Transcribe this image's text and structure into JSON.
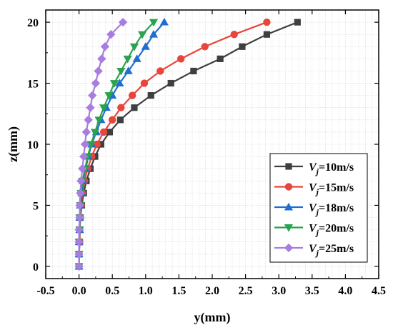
{
  "chart_data": {
    "type": "line",
    "xlabel": "y(mm)",
    "ylabel": "z(mm)",
    "xlim": [
      -0.5,
      4.5
    ],
    "ylim": [
      -1,
      21
    ],
    "x_ticks": [
      "-0.5",
      "0.0",
      "0.5",
      "1.0",
      "1.5",
      "2.0",
      "2.5",
      "3.0",
      "3.5",
      "4.0",
      "4.5"
    ],
    "y_ticks": [
      "0",
      "5",
      "10",
      "15",
      "20"
    ],
    "grid": true,
    "legend_position": "right",
    "z": [
      0,
      1,
      2,
      3,
      4,
      5,
      6,
      7,
      8,
      9,
      10,
      11,
      12,
      13,
      14,
      15,
      16,
      17,
      18,
      19,
      20
    ],
    "series": [
      {
        "name": "Vj=10m/s",
        "legend_base": "V",
        "legend_sub": "j",
        "legend_rest": "=10m/s",
        "color": "#3f3f3f",
        "marker": "square",
        "y": [
          0.0,
          0.0,
          0.01,
          0.01,
          0.02,
          0.04,
          0.07,
          0.11,
          0.17,
          0.24,
          0.33,
          0.46,
          0.62,
          0.83,
          1.08,
          1.38,
          1.72,
          2.12,
          2.45,
          2.82,
          3.28
        ]
      },
      {
        "name": "Vj=15m/s",
        "legend_base": "V",
        "legend_sub": "j",
        "legend_rest": "=15m/s",
        "color": "#e8453c",
        "marker": "circle",
        "y": [
          0.0,
          0.0,
          0.01,
          0.01,
          0.02,
          0.03,
          0.05,
          0.08,
          0.13,
          0.19,
          0.27,
          0.37,
          0.5,
          0.63,
          0.8,
          0.98,
          1.22,
          1.53,
          1.89,
          2.33,
          2.82
        ]
      },
      {
        "name": "Vj=18m/s",
        "legend_base": "V",
        "legend_sub": "j",
        "legend_rest": "=18m/s",
        "color": "#1f6fd1",
        "marker": "triangle-up",
        "y": [
          0.0,
          0.0,
          0.0,
          0.01,
          0.01,
          0.02,
          0.04,
          0.06,
          0.1,
          0.14,
          0.19,
          0.26,
          0.33,
          0.41,
          0.5,
          0.61,
          0.74,
          0.87,
          1.0,
          1.12,
          1.28
        ]
      },
      {
        "name": "Vj=20m/s",
        "legend_base": "V",
        "legend_sub": "j",
        "legend_rest": "=20m/s",
        "color": "#2aa24e",
        "marker": "triangle-down",
        "y": [
          0.0,
          0.0,
          0.0,
          0.01,
          0.01,
          0.02,
          0.03,
          0.05,
          0.09,
          0.13,
          0.18,
          0.24,
          0.3,
          0.37,
          0.45,
          0.53,
          0.63,
          0.73,
          0.83,
          0.95,
          1.12
        ]
      },
      {
        "name": "Vj=25m/s",
        "legend_base": "V",
        "legend_sub": "j",
        "legend_rest": "=25m/s",
        "color": "#a97de0",
        "marker": "diamond",
        "y": [
          0.0,
          0.0,
          0.0,
          0.0,
          0.01,
          0.01,
          0.02,
          0.03,
          0.05,
          0.07,
          0.09,
          0.11,
          0.14,
          0.17,
          0.2,
          0.25,
          0.29,
          0.34,
          0.39,
          0.48,
          0.66
        ]
      }
    ]
  }
}
